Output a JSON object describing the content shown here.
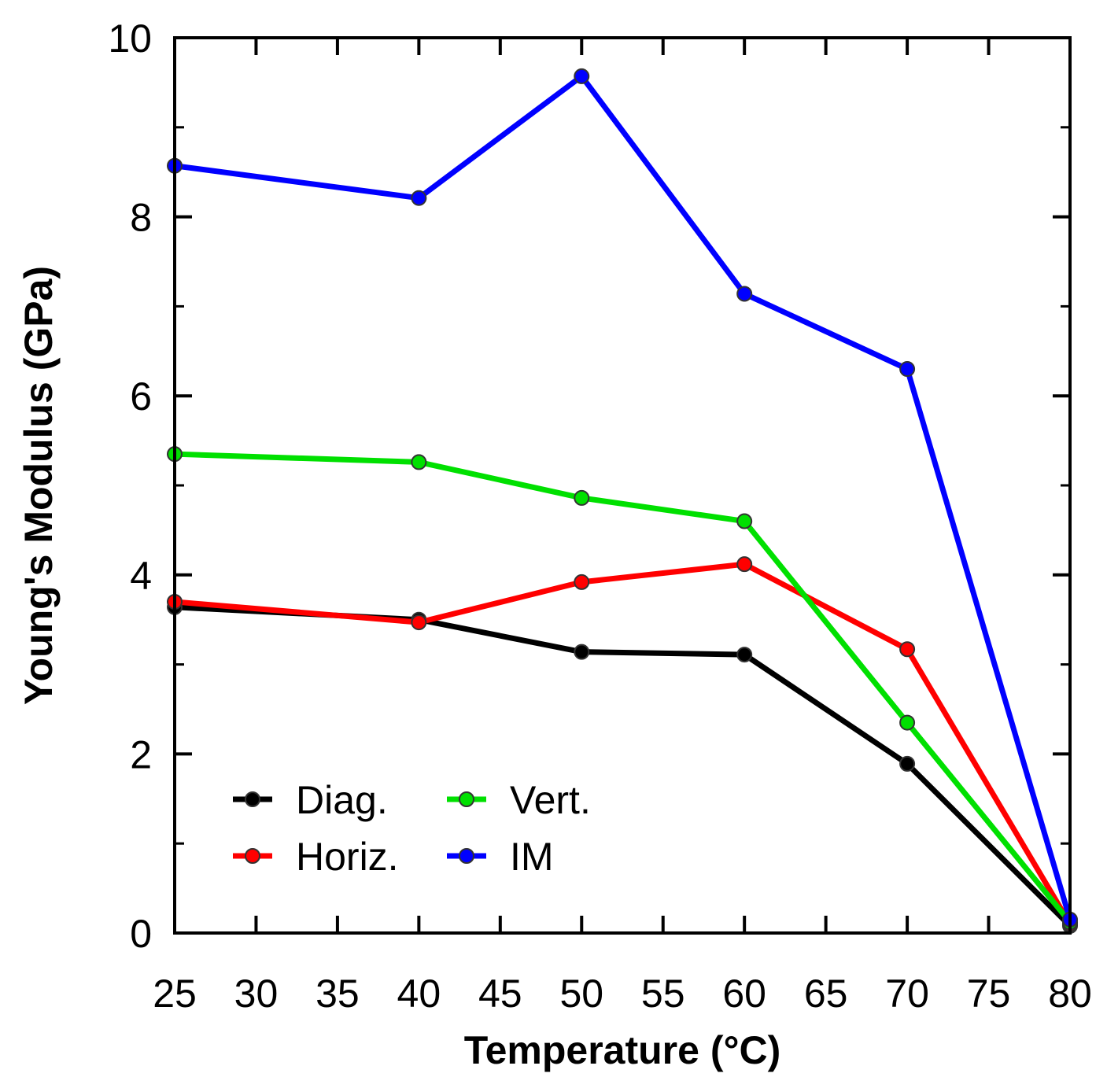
{
  "chart_data": {
    "type": "line",
    "title": "",
    "xlabel": "Temperature (°C)",
    "ylabel": "Young's Modulus (GPa)",
    "xlim": [
      25,
      80
    ],
    "ylim": [
      0,
      10
    ],
    "xticks": [
      25,
      30,
      35,
      40,
      45,
      50,
      55,
      60,
      65,
      70,
      75,
      80
    ],
    "yticks": [
      0,
      2,
      4,
      6,
      8,
      10
    ],
    "grid": false,
    "legend_position": "bottom-left",
    "x": [
      25,
      40,
      50,
      60,
      70,
      80
    ],
    "series": [
      {
        "name": "Diag.",
        "color": "#000000",
        "values": [
          3.64,
          3.5,
          3.14,
          3.11,
          1.89,
          0.08
        ]
      },
      {
        "name": "Horiz.",
        "color": "#ff0000",
        "values": [
          3.7,
          3.47,
          3.92,
          4.12,
          3.17,
          0.1
        ]
      },
      {
        "name": "Vert.",
        "color": "#00e000",
        "values": [
          5.35,
          5.26,
          4.86,
          4.6,
          2.35,
          0.12
        ]
      },
      {
        "name": "IM",
        "color": "#0000ff",
        "values": [
          8.57,
          8.21,
          9.57,
          7.14,
          6.3,
          0.15
        ]
      }
    ]
  }
}
